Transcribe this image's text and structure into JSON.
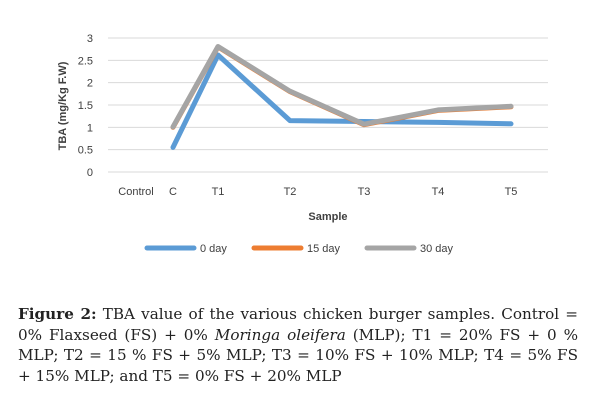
{
  "chart_data": {
    "type": "line",
    "categories": [
      "Control",
      "C",
      "T1",
      "T2",
      "T3",
      "T4",
      "T5"
    ],
    "x_tick_labels": [
      {
        "text": "Control",
        "category": "Control"
      },
      {
        "text": "C",
        "category": "C"
      },
      {
        "text": "T1",
        "category": "T1"
      },
      {
        "text": "T2",
        "category": "T2"
      },
      {
        "text": "T3",
        "category": "T3"
      },
      {
        "text": "T4",
        "category": "T4"
      },
      {
        "text": "T5",
        "category": "T5"
      }
    ],
    "series": [
      {
        "name": "0 day",
        "color": "#5b9bd5",
        "points": [
          {
            "x": "C",
            "y": 0.55
          },
          {
            "x": "T1",
            "y": 2.62
          },
          {
            "x": "T2",
            "y": 1.15
          },
          {
            "x": "T3",
            "y": 1.13
          },
          {
            "x": "T4",
            "y": 1.11
          },
          {
            "x": "T5",
            "y": 1.08
          }
        ]
      },
      {
        "name": "15 day",
        "color": "#ed7d31",
        "points": [
          {
            "x": "C",
            "y": 1.0
          },
          {
            "x": "T1",
            "y": 2.8
          },
          {
            "x": "T2",
            "y": 1.8
          },
          {
            "x": "T3",
            "y": 1.06
          },
          {
            "x": "T4",
            "y": 1.38
          },
          {
            "x": "T5",
            "y": 1.46
          }
        ]
      },
      {
        "name": "30 day",
        "color": "#a5a5a5",
        "points": [
          {
            "x": "C",
            "y": 1.01
          },
          {
            "x": "T1",
            "y": 2.81
          },
          {
            "x": "T2",
            "y": 1.81
          },
          {
            "x": "T3",
            "y": 1.07
          },
          {
            "x": "T4",
            "y": 1.39
          },
          {
            "x": "T5",
            "y": 1.47
          }
        ]
      }
    ],
    "yticks": [
      "0",
      "0.5",
      "1",
      "1.5",
      "2",
      "2.5",
      "3"
    ],
    "ylim": [
      0,
      3
    ],
    "xlabel": "Sample",
    "ylabel": "TBA (mg/Kg F.W)",
    "grid": "horizontal",
    "legend_position": "bottom"
  },
  "caption": {
    "label": "Figure 2:",
    "part1": " TBA value of the various chicken burger samples. Control = 0% Flaxseed (FS) + 0% ",
    "italic": "Moringa oleifera",
    "part2": " (MLP); T1 = 20% FS + 0 % MLP; T2 = 15 % FS + 5% MLP; T3 = 10% FS + 10% MLP; T4 = 5% FS + 15% MLP; and T5 = 0% FS + 20% MLP"
  }
}
